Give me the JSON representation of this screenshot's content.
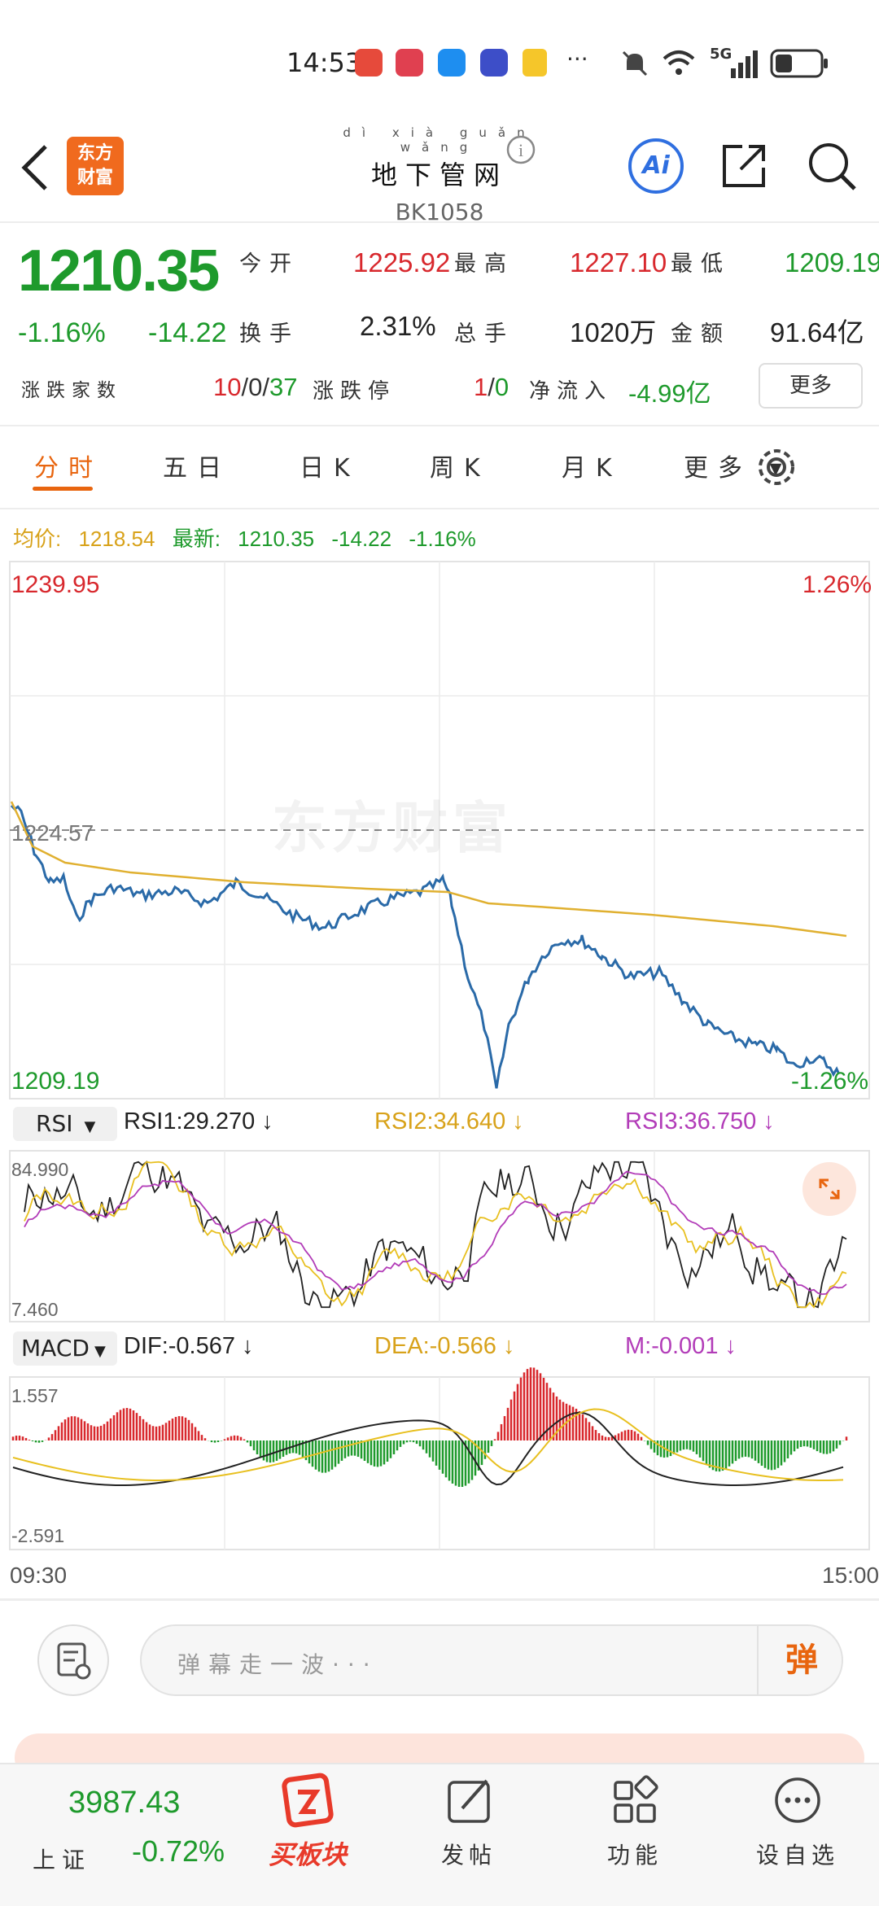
{
  "status": {
    "time": "14:53",
    "network": "5G"
  },
  "header": {
    "logo_line1": "东方",
    "logo_line2": "财富",
    "title": "地下管网",
    "code": "BK1058",
    "ai_label": "Ai"
  },
  "quote": {
    "price": "1210.35",
    "change_pct": "-1.16%",
    "change": "-14.22",
    "open_label": "今开",
    "open": "1225.92",
    "high_label": "最高",
    "high": "1227.10",
    "low_label": "最低",
    "low": "1209.19",
    "turnover_label": "换手",
    "turnover": "2.31%",
    "volume_label": "总手",
    "volume": "1020万",
    "amount_label": "金额",
    "amount": "91.64亿",
    "updown_label": "涨跌家数",
    "up_count": "10",
    "flat_count": "0",
    "down_count": "37",
    "limit_label": "涨跌停",
    "limit_up": "1",
    "limit_down": "0",
    "inflow_label": "净流入",
    "inflow": "-4.99亿",
    "more_label": "更多"
  },
  "tabs": [
    "分时",
    "五日",
    "日K",
    "周K",
    "月K",
    "更多"
  ],
  "intraday": {
    "avg_label": "均价:",
    "avg_value": "1218.54",
    "latest_label": "最新:",
    "latest_value": "1210.35",
    "latest_change": "-14.22",
    "latest_pct": "-1.16%",
    "y_max": "1239.95",
    "y_mid": "1224.57",
    "y_min": "1209.19",
    "pct_max": "1.26%",
    "pct_min": "-1.26%",
    "watermark": "东方财富",
    "time_start": "09:30",
    "time_end": "15:00"
  },
  "rsi": {
    "selector": "RSI",
    "rsi1": "RSI1:29.270",
    "rsi2": "RSI2:34.640",
    "rsi3": "RSI3:36.750",
    "max": "84.990",
    "min": "7.460"
  },
  "macd": {
    "selector": "MACD",
    "dif": "DIF:-0.567",
    "dea": "DEA:-0.566",
    "m": "M:-0.001",
    "max": "1.557",
    "min": "-2.591"
  },
  "danmaku": {
    "placeholder": "弹幕走一波···",
    "send_label": "弹"
  },
  "bottom": {
    "index_value": "3987.43",
    "index_name": "上证",
    "index_pct": "-0.72%",
    "buy_label": "买板块",
    "post_label": "发帖",
    "function_label": "功能",
    "watchlist_label": "设自选"
  },
  "colors": {
    "up": "#d8282d",
    "down": "#1e9a2c",
    "accent": "#e8650f",
    "price_line": "#2a6aa8",
    "avg_line": "#e0b030",
    "rsi3": "#b23cb8"
  }
}
